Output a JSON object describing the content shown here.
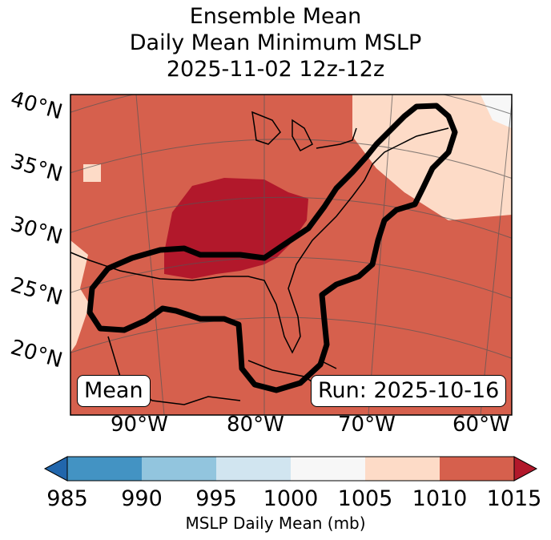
{
  "title": {
    "line1": "Ensemble Mean",
    "line2": "Daily Mean Minimum MSLP",
    "line3": "2025-11-02 12z-12z"
  },
  "map": {
    "lat_labels": [
      "40°N",
      "35°N",
      "30°N",
      "25°N",
      "20°N"
    ],
    "lon_labels": [
      "90°W",
      "80°W",
      "70°W",
      "60°W"
    ],
    "mean_label": "Mean",
    "run_label": "Run: 2025-10-16",
    "contour_description": "Ensemble mean outline"
  },
  "colorbar": {
    "ticks": [
      "985",
      "990",
      "995",
      "1000",
      "1005",
      "1010",
      "1015"
    ],
    "label": "MSLP Daily Mean (mb)",
    "colors": {
      "below": "#2166ac",
      "985_990": "#4393c3",
      "990_995": "#92c5de",
      "995_1000": "#d1e5f0",
      "1000_1005": "#f7f7f7",
      "1005_1010": "#fddbc7",
      "1010_1015": "#d6604d",
      "above": "#b2182b"
    }
  }
}
